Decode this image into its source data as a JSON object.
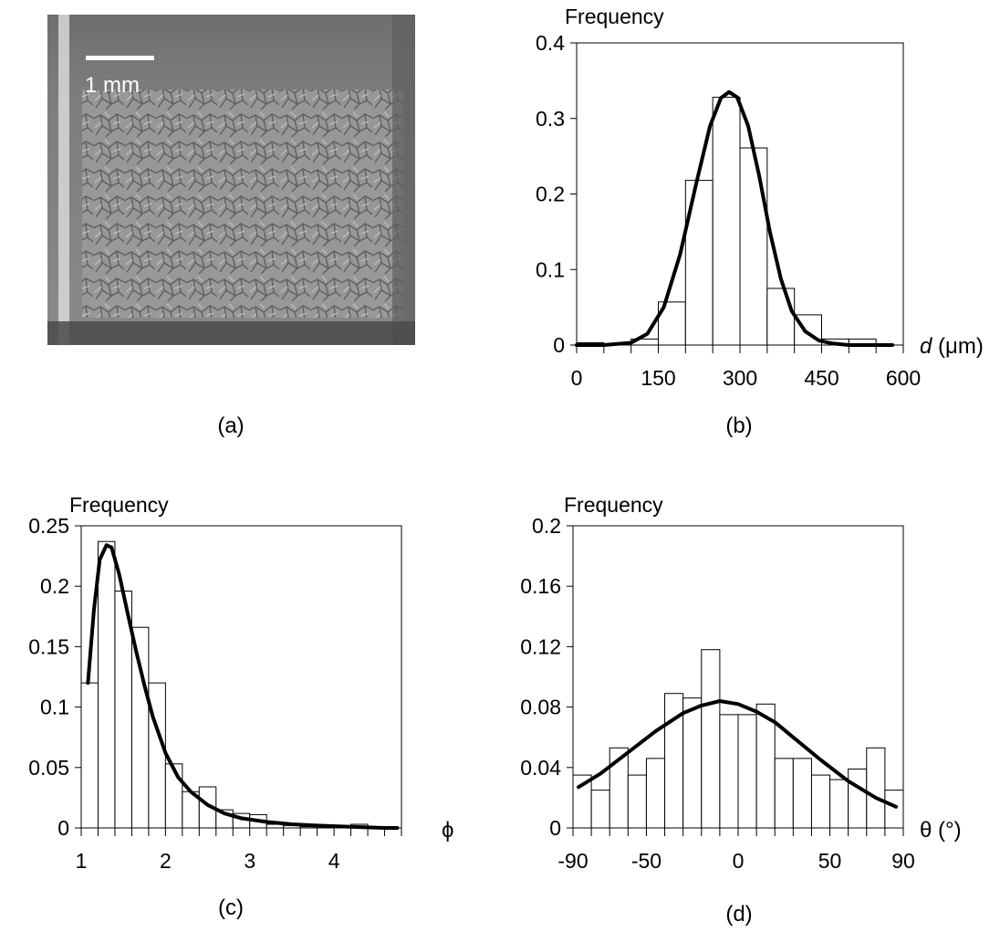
{
  "photo": {
    "scale_label": "1 mm",
    "panel_label": "(a)"
  },
  "chart_data": [
    {
      "id": "b",
      "type": "bar",
      "panel_label": "(b)",
      "ylabel": "Frequency",
      "xlabel_var": "d",
      "xlabel_unit": " (μm)",
      "xlim": [
        0,
        600
      ],
      "ylim": [
        0,
        0.4
      ],
      "x_ticks": [
        0,
        150,
        300,
        450,
        600
      ],
      "y_ticks": [
        0,
        0.1,
        0.2,
        0.3,
        0.4
      ],
      "x_tick_labels": [
        "0",
        "150",
        "300",
        "450",
        "600"
      ],
      "y_tick_labels": [
        "0",
        "0.1",
        "0.2",
        "0.3",
        "0.4"
      ],
      "minor_x_step": 50,
      "bin_edges": [
        0,
        50,
        100,
        150,
        200,
        250,
        300,
        350,
        400,
        450,
        500,
        550,
        600
      ],
      "values": [
        0.003,
        0.0,
        0.008,
        0.057,
        0.218,
        0.328,
        0.261,
        0.075,
        0.04,
        0.008,
        0.008,
        0.0
      ],
      "fit_curve": {
        "x": [
          0,
          50,
          100,
          130,
          160,
          190,
          220,
          245,
          265,
          280,
          295,
          315,
          335,
          355,
          375,
          395,
          420,
          445,
          470,
          500,
          540,
          580
        ],
        "y": [
          0.0,
          0.0,
          0.003,
          0.015,
          0.05,
          0.12,
          0.215,
          0.29,
          0.327,
          0.335,
          0.328,
          0.29,
          0.225,
          0.15,
          0.088,
          0.045,
          0.018,
          0.006,
          0.002,
          0.0,
          0.0,
          0.0
        ]
      }
    },
    {
      "id": "c",
      "type": "bar",
      "panel_label": "(c)",
      "ylabel": "Frequency",
      "xlabel_var": "ϕ",
      "xlabel_unit": "",
      "xlim": [
        1,
        4.8
      ],
      "ylim": [
        0,
        0.25
      ],
      "x_ticks": [
        1,
        2,
        3,
        4
      ],
      "y_ticks": [
        0,
        0.05,
        0.1,
        0.15,
        0.2,
        0.25
      ],
      "x_tick_labels": [
        "1",
        "2",
        "3",
        "4"
      ],
      "y_tick_labels": [
        "0",
        "0.05",
        "0.1",
        "0.15",
        "0.2",
        "0.25"
      ],
      "minor_x_step": 0.2,
      "bin_edges": [
        1.0,
        1.2,
        1.4,
        1.6,
        1.8,
        2.0,
        2.2,
        2.4,
        2.6,
        2.8,
        3.0,
        3.2,
        3.4,
        3.6,
        3.8,
        4.0,
        4.2,
        4.4,
        4.6,
        4.8
      ],
      "values": [
        0.12,
        0.237,
        0.196,
        0.166,
        0.12,
        0.053,
        0.03,
        0.034,
        0.015,
        0.012,
        0.011,
        0.003,
        0.002,
        0.001,
        0.001,
        0.001,
        0.003,
        0.001,
        0.0
      ],
      "fit_curve": {
        "x": [
          1.08,
          1.15,
          1.22,
          1.3,
          1.36,
          1.45,
          1.55,
          1.65,
          1.75,
          1.85,
          2.0,
          2.15,
          2.3,
          2.5,
          2.7,
          2.9,
          3.2,
          3.5,
          3.8,
          4.2,
          4.6,
          4.75
        ],
        "y": [
          0.12,
          0.18,
          0.222,
          0.234,
          0.232,
          0.21,
          0.178,
          0.147,
          0.118,
          0.092,
          0.062,
          0.042,
          0.03,
          0.019,
          0.012,
          0.008,
          0.005,
          0.003,
          0.002,
          0.001,
          0.0,
          0.0
        ]
      }
    },
    {
      "id": "d",
      "type": "bar",
      "panel_label": "(d)",
      "ylabel": "Frequency",
      "xlabel_var": "θ",
      "xlabel_unit": " (°)",
      "xlim": [
        -90,
        90
      ],
      "ylim": [
        0,
        0.2
      ],
      "x_ticks": [
        -90,
        -50,
        0,
        50,
        90
      ],
      "y_ticks": [
        0,
        0.04,
        0.08,
        0.12,
        0.16,
        0.2
      ],
      "x_tick_labels": [
        "-90",
        "-50",
        "0",
        "50",
        "90"
      ],
      "y_tick_labels": [
        "0",
        "0.04",
        "0.08",
        "0.12",
        "0.16",
        "0.2"
      ],
      "minor_x_step": 10,
      "bin_edges": [
        -90,
        -80,
        -70,
        -60,
        -50,
        -40,
        -30,
        -20,
        -10,
        0,
        10,
        20,
        30,
        40,
        50,
        60,
        70,
        80,
        90
      ],
      "values": [
        0.035,
        0.025,
        0.053,
        0.035,
        0.046,
        0.089,
        0.086,
        0.118,
        0.075,
        0.075,
        0.082,
        0.046,
        0.046,
        0.035,
        0.032,
        0.039,
        0.053,
        0.025
      ],
      "fit_curve": {
        "x": [
          -87,
          -75,
          -60,
          -45,
          -30,
          -20,
          -10,
          0,
          10,
          20,
          30,
          45,
          60,
          75,
          86
        ],
        "y": [
          0.027,
          0.036,
          0.05,
          0.064,
          0.076,
          0.081,
          0.084,
          0.082,
          0.077,
          0.07,
          0.06,
          0.045,
          0.031,
          0.02,
          0.014
        ]
      }
    }
  ]
}
